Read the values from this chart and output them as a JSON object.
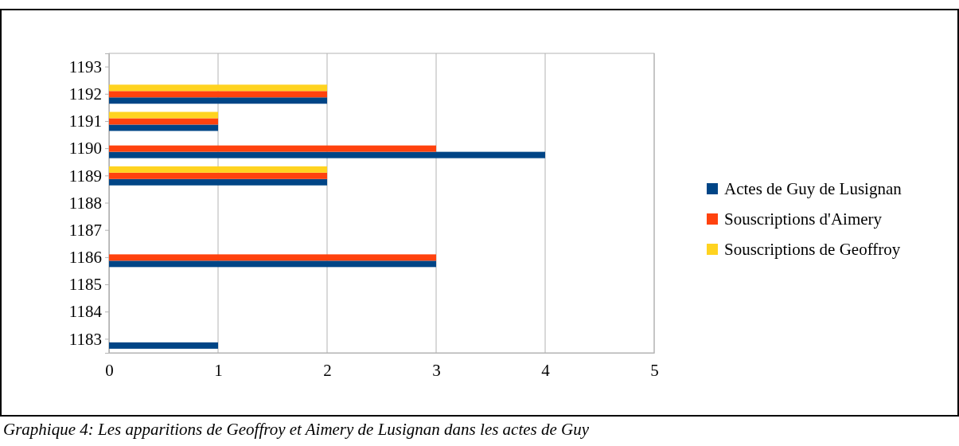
{
  "chart_data": {
    "type": "bar",
    "orientation": "horizontal",
    "categories": [
      "1193",
      "1192",
      "1191",
      "1190",
      "1189",
      "1188",
      "1187",
      "1186",
      "1185",
      "1184",
      "1183"
    ],
    "series": [
      {
        "name": "Actes de Guy de Lusignan",
        "color": "#004586",
        "values": [
          0,
          2,
          1,
          4,
          2,
          0,
          0,
          3,
          0,
          0,
          1
        ]
      },
      {
        "name": "Souscriptions d'Aimery",
        "color": "#ff420e",
        "values": [
          0,
          2,
          1,
          3,
          2,
          0,
          0,
          3,
          0,
          0,
          0
        ]
      },
      {
        "name": "Souscriptions de Geoffroy",
        "color": "#ffd320",
        "values": [
          0,
          2,
          1,
          0,
          2,
          0,
          0,
          0,
          0,
          0,
          0
        ]
      }
    ],
    "xlim": [
      0,
      5
    ],
    "xticks": [
      0,
      1,
      2,
      3,
      4,
      5
    ],
    "grid": "x",
    "legend": "right",
    "annotations": [
      "Graphique 4: Les apparitions de Geoffroy et Aimery de Lusignan dans les actes de Guy"
    ]
  }
}
